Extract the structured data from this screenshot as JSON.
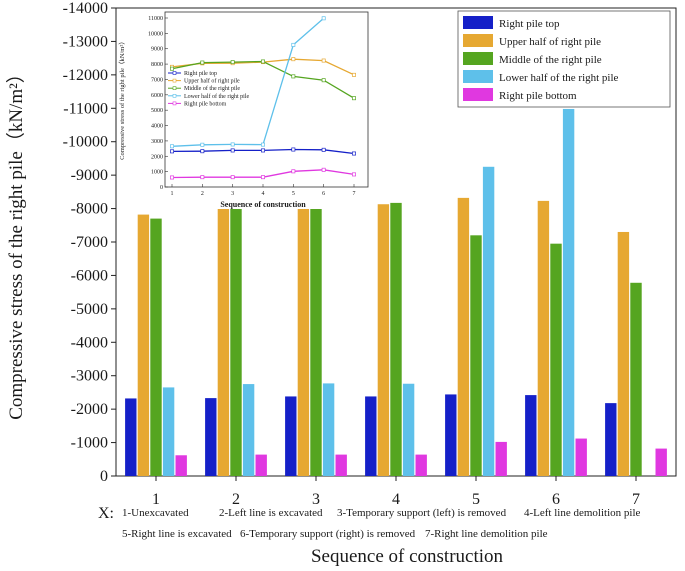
{
  "chart_data": {
    "type": "bar",
    "title": "",
    "xlabel": "Sequence of construction",
    "ylabel": "Compressive stress of the right pile（kN/m²）",
    "ylim": [
      0,
      -14000
    ],
    "yticks": [
      -14000,
      -13000,
      -12000,
      -11000,
      -10000,
      -9000,
      -8000,
      -7000,
      -6000,
      -5000,
      -4000,
      -3000,
      -2000,
      -1000,
      0
    ],
    "categories": [
      "1",
      "2",
      "3",
      "4",
      "5",
      "6",
      "7"
    ],
    "series": [
      {
        "name": "Right pile top",
        "color": "#1520c8",
        "values": [
          -2320,
          -2330,
          -2380,
          -2380,
          -2440,
          -2420,
          -2180
        ]
      },
      {
        "name": "Upper half of right pile",
        "color": "#e6a832",
        "values": [
          -7820,
          -8050,
          -8060,
          -8130,
          -8320,
          -8230,
          -7300
        ]
      },
      {
        "name": "Middle of the right pile",
        "color": "#55a520",
        "values": [
          -7700,
          -8100,
          -8130,
          -8170,
          -7200,
          -6950,
          -5780
        ]
      },
      {
        "name": "Lower half of the right pile",
        "color": "#5ec0ea",
        "values": [
          -2650,
          -2750,
          -2770,
          -2760,
          -9250,
          -10980,
          null
        ]
      },
      {
        "name": "Right pile bottom",
        "color": "#e038e0",
        "values": [
          -620,
          -640,
          -640,
          -640,
          -1020,
          -1120,
          -820
        ]
      }
    ],
    "legend_position": "top-right",
    "step_note": {
      "prefix": "X:",
      "items": [
        "1-Unexcavated",
        "2-Left line is excavated",
        "3-Temporary support (left) is removed",
        "4-Left line demolition pile",
        "5-Right line is excavated",
        "6-Temporary support (right) is removed",
        "7-Right line demolition pile"
      ]
    },
    "inset": {
      "type": "line",
      "xlabel": "Sequence of construction",
      "ylabel": "Compressive stress of the right pile（kN/m²）",
      "ylim": [
        0,
        11000
      ],
      "yticks": [
        0,
        1000,
        2000,
        3000,
        4000,
        5000,
        6000,
        7000,
        8000,
        9000,
        10000,
        11000
      ],
      "x": [
        1,
        2,
        3,
        4,
        5,
        6,
        7
      ],
      "series": [
        {
          "name": "Right pile top",
          "color": "#1520c8",
          "values": [
            2320,
            2330,
            2380,
            2380,
            2440,
            2420,
            2180
          ]
        },
        {
          "name": "Upper half of right pile",
          "color": "#e6a832",
          "values": [
            7820,
            8050,
            8060,
            8130,
            8320,
            8230,
            7300
          ]
        },
        {
          "name": "Middle of the right pile",
          "color": "#55a520",
          "values": [
            7700,
            8100,
            8130,
            8170,
            7200,
            6950,
            5780
          ]
        },
        {
          "name": "Lower half of the right pile",
          "color": "#5ec0ea",
          "values": [
            2650,
            2750,
            2770,
            2760,
            9250,
            10980,
            null
          ]
        },
        {
          "name": "Right pile bottom",
          "color": "#e038e0",
          "values": [
            620,
            640,
            640,
            640,
            1020,
            1120,
            820
          ]
        }
      ]
    }
  }
}
